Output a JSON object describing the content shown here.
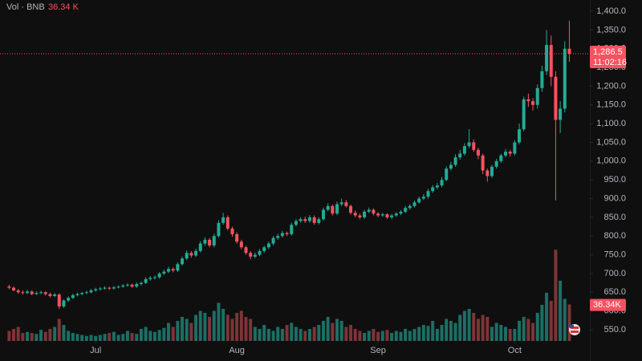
{
  "chart_data": {
    "type": "candlestick",
    "volume_title": "Vol · BNB",
    "volume_label": "36.34 K",
    "volume_badge": "36.34K",
    "price_label": "1,286.5",
    "countdown": "11:02:16",
    "up_color": "#22ab94",
    "down_color": "#f7525f",
    "volume_up_color": "#1d6e64",
    "volume_down_color": "#7e3438",
    "open": [
      665,
      662,
      655,
      650,
      648,
      652,
      645,
      648,
      650,
      645,
      640,
      644,
      612,
      628,
      635,
      642,
      645,
      648,
      650,
      655,
      658,
      660,
      662,
      660,
      663,
      665,
      668,
      670,
      665,
      672,
      675,
      685,
      688,
      690,
      700,
      705,
      712,
      708,
      725,
      740,
      755,
      748,
      760,
      780,
      790,
      775,
      800,
      835,
      850,
      820,
      805,
      785,
      770,
      755,
      745,
      750,
      760,
      770,
      780,
      795,
      800,
      808,
      805,
      830,
      840,
      845,
      840,
      850,
      835,
      845,
      870,
      880,
      860,
      885,
      890,
      880,
      862,
      855,
      850,
      865,
      870,
      860,
      855,
      858,
      850,
      855,
      860,
      865,
      875,
      880,
      890,
      900,
      905,
      920,
      930,
      935,
      950,
      980,
      990,
      1010,
      1020,
      1040,
      1050,
      1030,
      1015,
      975,
      960,
      985,
      1000,
      1015,
      1025,
      1020,
      1050,
      1085,
      1165,
      1160,
      1150,
      1195,
      1240,
      1310,
      1225,
      1110,
      1140,
      1300
    ],
    "high": [
      670,
      666,
      659,
      655,
      656,
      655,
      652,
      654,
      653,
      649,
      648,
      647,
      631,
      639,
      646,
      649,
      651,
      654,
      659,
      662,
      664,
      666,
      665,
      667,
      668,
      672,
      674,
      673,
      676,
      679,
      690,
      693,
      695,
      704,
      710,
      718,
      716,
      730,
      745,
      762,
      760,
      766,
      786,
      797,
      795,
      806,
      842,
      862,
      855,
      825,
      810,
      790,
      774,
      760,
      756,
      765,
      774,
      785,
      800,
      806,
      814,
      812,
      836,
      845,
      850,
      852,
      856,
      855,
      850,
      876,
      887,
      884,
      892,
      900,
      896,
      884,
      868,
      860,
      870,
      876,
      874,
      864,
      862,
      861,
      859,
      864,
      869,
      880,
      885,
      895,
      905,
      912,
      926,
      936,
      942,
      958,
      986,
      998,
      1018,
      1030,
      1048,
      1085,
      1058,
      1036,
      1020,
      980,
      990,
      1006,
      1020,
      1032,
      1030,
      1056,
      1100,
      1172,
      1180,
      1168,
      1205,
      1255,
      1350,
      1335,
      1240,
      1160,
      1320,
      1375
    ],
    "low": [
      658,
      652,
      646,
      644,
      645,
      642,
      643,
      645,
      641,
      636,
      637,
      605,
      608,
      624,
      632,
      639,
      642,
      645,
      647,
      651,
      655,
      657,
      656,
      657,
      660,
      662,
      665,
      662,
      662,
      668,
      672,
      681,
      684,
      686,
      696,
      701,
      703,
      704,
      721,
      736,
      742,
      744,
      756,
      774,
      770,
      770,
      796,
      830,
      815,
      798,
      780,
      765,
      750,
      738,
      741,
      746,
      755,
      765,
      775,
      790,
      796,
      800,
      801,
      826,
      836,
      835,
      836,
      830,
      831,
      841,
      866,
      855,
      856,
      880,
      876,
      857,
      850,
      845,
      846,
      861,
      855,
      850,
      851,
      846,
      845,
      851,
      856,
      861,
      870,
      876,
      886,
      896,
      900,
      915,
      925,
      930,
      946,
      975,
      985,
      1004,
      1015,
      1035,
      1025,
      1005,
      965,
      945,
      955,
      980,
      995,
      1010,
      1012,
      1015,
      1045,
      1080,
      1145,
      1135,
      1140,
      1185,
      1230,
      1200,
      895,
      1075,
      1130,
      1265
    ],
    "close": [
      662,
      655,
      650,
      648,
      652,
      645,
      648,
      650,
      645,
      640,
      644,
      612,
      628,
      635,
      642,
      645,
      648,
      650,
      655,
      658,
      660,
      662,
      660,
      663,
      665,
      668,
      670,
      665,
      672,
      675,
      685,
      688,
      690,
      700,
      705,
      712,
      708,
      725,
      740,
      755,
      748,
      760,
      780,
      790,
      775,
      800,
      835,
      850,
      820,
      805,
      785,
      770,
      755,
      745,
      750,
      760,
      770,
      780,
      795,
      800,
      808,
      805,
      830,
      840,
      845,
      840,
      850,
      835,
      845,
      870,
      880,
      860,
      885,
      890,
      880,
      862,
      855,
      850,
      865,
      870,
      860,
      855,
      858,
      850,
      855,
      860,
      865,
      875,
      880,
      890,
      900,
      905,
      920,
      930,
      935,
      950,
      980,
      990,
      1010,
      1020,
      1040,
      1050,
      1030,
      1015,
      975,
      960,
      985,
      1000,
      1015,
      1025,
      1020,
      1050,
      1085,
      1165,
      1160,
      1150,
      1195,
      1240,
      1310,
      1225,
      1110,
      1140,
      1300,
      1286.5
    ],
    "volume": [
      10,
      12,
      14,
      8,
      9,
      8,
      7,
      11,
      9,
      12,
      14,
      22,
      16,
      10,
      8,
      7,
      6,
      5,
      6,
      5,
      6,
      7,
      8,
      9,
      6,
      7,
      10,
      8,
      7,
      12,
      14,
      10,
      9,
      11,
      13,
      18,
      14,
      20,
      24,
      22,
      18,
      26,
      30,
      28,
      24,
      30,
      38,
      32,
      26,
      22,
      28,
      30,
      24,
      22,
      14,
      12,
      16,
      12,
      10,
      14,
      12,
      16,
      18,
      14,
      12,
      10,
      12,
      14,
      16,
      20,
      24,
      18,
      22,
      20,
      14,
      16,
      12,
      10,
      8,
      10,
      12,
      9,
      10,
      11,
      8,
      10,
      9,
      12,
      10,
      12,
      14,
      16,
      15,
      20,
      12,
      16,
      22,
      20,
      18,
      26,
      30,
      32,
      28,
      22,
      26,
      24,
      14,
      18,
      16,
      14,
      12,
      12,
      20,
      24,
      22,
      18,
      28,
      36,
      48,
      40,
      91,
      60,
      42,
      36.34
    ],
    "xlim": [
      -2,
      127.5
    ],
    "xticks": [
      {
        "value": 19,
        "label": "Jul"
      },
      {
        "value": 50,
        "label": "Aug"
      },
      {
        "value": 81,
        "label": "Sep"
      },
      {
        "value": 111,
        "label": "Oct"
      }
    ],
    "ylim": [
      520,
      1430
    ],
    "yticks": [
      {
        "value": 1400,
        "label": "1,400.0"
      },
      {
        "value": 1350,
        "label": "1,350.0"
      },
      {
        "value": 1300,
        "label": "1,300.0"
      },
      {
        "value": 1250,
        "label": "1,250.0"
      },
      {
        "value": 1200,
        "label": "1,200.0"
      },
      {
        "value": 1150,
        "label": "1,150.0"
      },
      {
        "value": 1100,
        "label": "1,100.0"
      },
      {
        "value": 1050,
        "label": "1,050.0"
      },
      {
        "value": 1000,
        "label": "1,000.0"
      },
      {
        "value": 950,
        "label": "950.0"
      },
      {
        "value": 900,
        "label": "900.0"
      },
      {
        "value": 850,
        "label": "850.0"
      },
      {
        "value": 800,
        "label": "800.0"
      },
      {
        "value": 750,
        "label": "750.0"
      },
      {
        "value": 700,
        "label": "700.0"
      },
      {
        "value": 650,
        "label": "650.0"
      },
      {
        "value": 600,
        "label": "600.0"
      },
      {
        "value": 550,
        "label": "550.0"
      }
    ],
    "vlim": [
      0,
      340
    ]
  }
}
